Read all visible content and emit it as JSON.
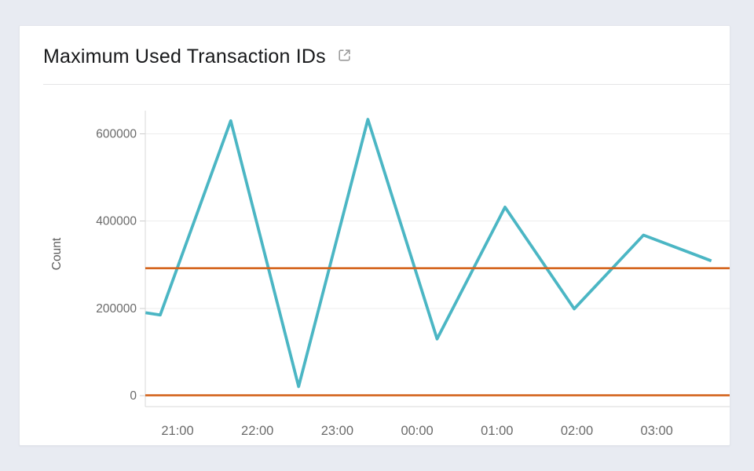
{
  "card": {
    "title": "Maximum Used Transaction IDs",
    "title_icon": "external-link-icon"
  },
  "colors": {
    "page_background": "#e8ebf2",
    "card_background": "#ffffff",
    "title_text": "#17181a",
    "icon_gray": "#9b9b9b",
    "divider": "#e4e4e6",
    "grid_line": "#ededed",
    "axis_line": "#d9d9d9",
    "tick_text": "#6a6a6a",
    "axis_title_text": "#5c5c5c",
    "series_teal": "#4bb6c4",
    "annotation_orange": "#d4641d"
  },
  "chart_data": {
    "type": "line",
    "title": "Maximum Used Transaction IDs",
    "xlabel": "",
    "ylabel": "Count",
    "grid": "horizontal",
    "legend": "none",
    "ylim": [
      -25000,
      653000
    ],
    "y_ticks": [
      0,
      200000,
      400000,
      600000
    ],
    "y_tick_labels": [
      "0",
      "200000",
      "400000",
      "600000"
    ],
    "x_ticks": [
      "21:00",
      "22:00",
      "23:00",
      "00:00",
      "01:00",
      "02:00",
      "03:00"
    ],
    "series": [
      {
        "name": "Maximum Used Transaction IDs",
        "color": "#4bb6c4",
        "points": [
          {
            "time": "20:36",
            "value": 190000
          },
          {
            "time": "20:47",
            "value": 185000
          },
          {
            "time": "21:40",
            "value": 630000
          },
          {
            "time": "22:31",
            "value": 21000
          },
          {
            "time": "23:23",
            "value": 633000
          },
          {
            "time": "00:15",
            "value": 130000
          },
          {
            "time": "01:06",
            "value": 432000
          },
          {
            "time": "01:58",
            "value": 199000
          },
          {
            "time": "02:50",
            "value": 368000
          },
          {
            "time": "03:41",
            "value": 309000
          }
        ]
      }
    ],
    "annotations": [
      {
        "type": "horizontal-line",
        "value": 292000,
        "color": "#d4641d"
      },
      {
        "type": "horizontal-line",
        "value": 1000,
        "color": "#d4641d"
      }
    ]
  }
}
